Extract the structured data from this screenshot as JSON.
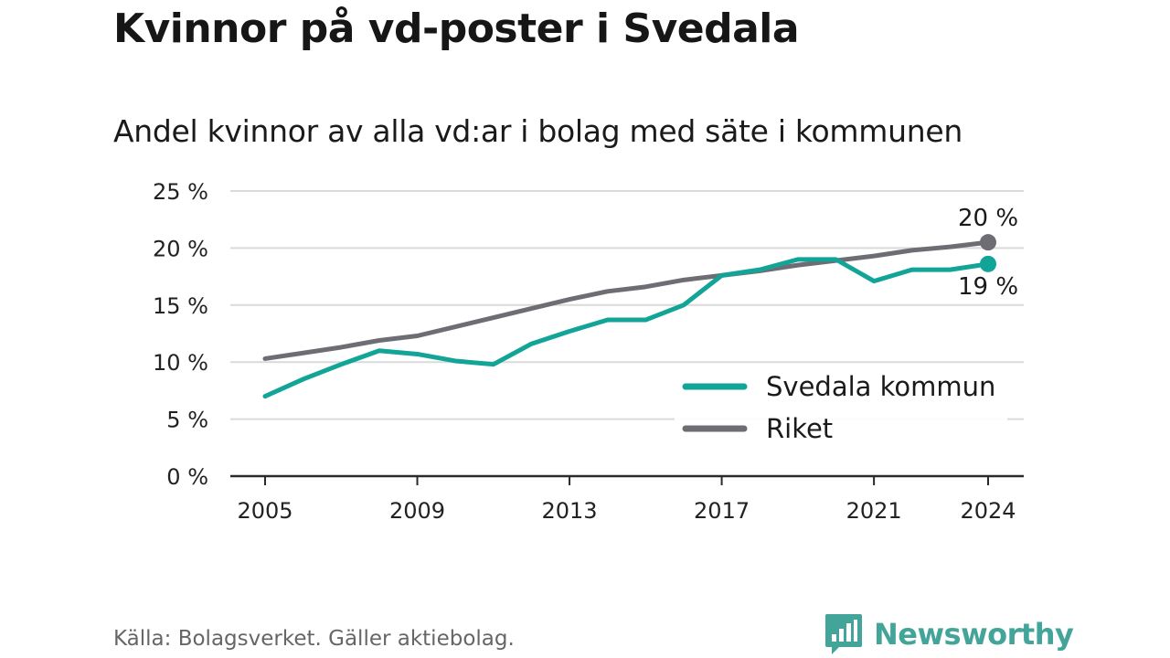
{
  "title": "Kvinnor på vd-poster i Svedala",
  "subtitle": "Andel kvinnor av alla vd:ar i bolag med säte i kommunen",
  "source": "Källa: Bolagsverket. Gäller aktiebolag.",
  "brand": {
    "name": "Newsworthy",
    "icon": "newsworthy-logo-icon",
    "color": "#43a49a"
  },
  "chart_data": {
    "type": "line",
    "x": [
      2005,
      2006,
      2007,
      2008,
      2009,
      2010,
      2011,
      2012,
      2013,
      2014,
      2015,
      2016,
      2017,
      2018,
      2019,
      2020,
      2021,
      2022,
      2023,
      2024
    ],
    "series": [
      {
        "name": "Svedala kommun",
        "color": "#12a597",
        "values": [
          7.0,
          8.5,
          9.8,
          11.0,
          10.7,
          10.1,
          9.8,
          11.6,
          12.7,
          13.7,
          13.7,
          15.0,
          17.6,
          18.1,
          19.0,
          19.0,
          17.1,
          18.1,
          18.1,
          18.6
        ],
        "end_label": "19 %"
      },
      {
        "name": "Riket",
        "color": "#6e6d74",
        "values": [
          10.3,
          10.8,
          11.3,
          11.9,
          12.3,
          13.1,
          13.9,
          14.7,
          15.5,
          16.2,
          16.6,
          17.2,
          17.6,
          18.0,
          18.5,
          18.9,
          19.3,
          19.8,
          20.1,
          20.5
        ],
        "end_label": "20 %"
      }
    ],
    "x_ticks": [
      2005,
      2009,
      2013,
      2017,
      2021,
      2024
    ],
    "x_tick_labels": [
      "2005",
      "2009",
      "2013",
      "2017",
      "2021",
      "2024"
    ],
    "y_ticks": [
      0,
      5,
      10,
      15,
      20,
      25
    ],
    "y_tick_labels": [
      "0 %",
      "5 %",
      "10 %",
      "15 %",
      "20 %",
      "25 %"
    ],
    "ylim": [
      0,
      25
    ],
    "xlim": [
      2005,
      2024
    ],
    "grid": "horizontal",
    "legend_position": "bottom-right",
    "xlabel": "",
    "ylabel": ""
  }
}
